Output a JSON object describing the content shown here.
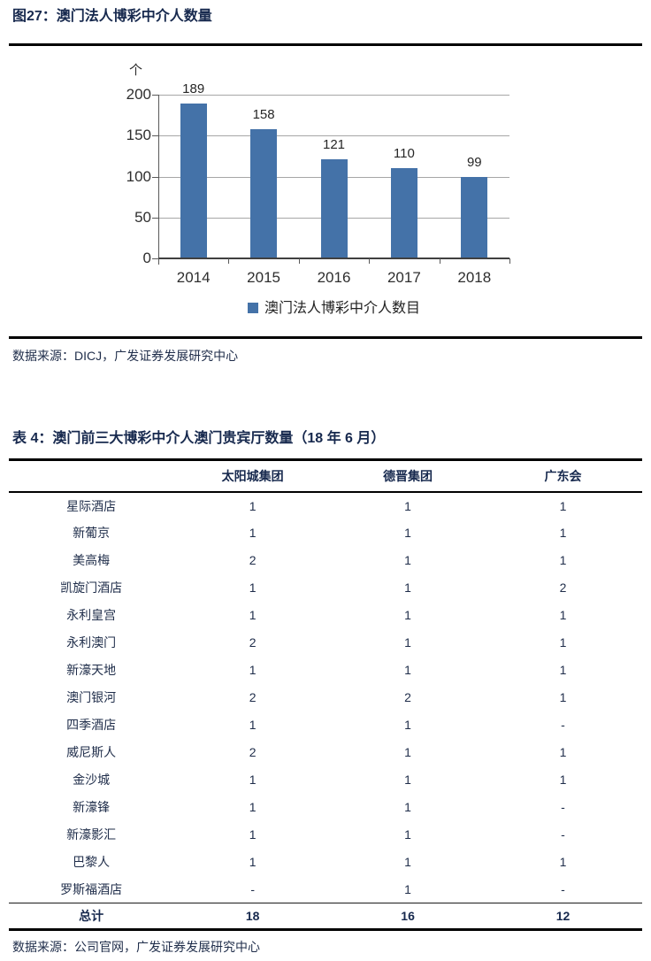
{
  "figure": {
    "title": "图27：澳门法人博彩中介人数量",
    "source": "数据来源：DICJ，广发证券发展研究中心"
  },
  "chart_data": {
    "type": "bar",
    "title": "澳门法人博彩中介人数量",
    "unit_label": "个",
    "categories": [
      "2014",
      "2015",
      "2016",
      "2017",
      "2018"
    ],
    "values": [
      189,
      158,
      121,
      110,
      99
    ],
    "legend": "澳门法人博彩中介人数目",
    "legend_position": "bottom",
    "xlabel": "",
    "ylabel": "个",
    "ylim": [
      0,
      200
    ],
    "yticks": [
      0,
      50,
      100,
      150,
      200
    ],
    "grid": true,
    "bar_color": "#4472a8"
  },
  "table": {
    "title": "表 4：澳门前三大博彩中介人澳门贵宾厅数量（18 年 6 月）",
    "columns": [
      "",
      "太阳城集团",
      "德晋集团",
      "广东会"
    ],
    "rows": [
      [
        "星际酒店",
        "1",
        "1",
        "1"
      ],
      [
        "新葡京",
        "1",
        "1",
        "1"
      ],
      [
        "美高梅",
        "2",
        "1",
        "1"
      ],
      [
        "凯旋门酒店",
        "1",
        "1",
        "2"
      ],
      [
        "永利皇宫",
        "1",
        "1",
        "1"
      ],
      [
        "永利澳门",
        "2",
        "1",
        "1"
      ],
      [
        "新濠天地",
        "1",
        "1",
        "1"
      ],
      [
        "澳门银河",
        "2",
        "2",
        "1"
      ],
      [
        "四季酒店",
        "1",
        "1",
        "-"
      ],
      [
        "威尼斯人",
        "2",
        "1",
        "1"
      ],
      [
        "金沙城",
        "1",
        "1",
        "1"
      ],
      [
        "新濠锋",
        "1",
        "1",
        "-"
      ],
      [
        "新濠影汇",
        "1",
        "1",
        "-"
      ],
      [
        "巴黎人",
        "1",
        "1",
        "1"
      ],
      [
        "罗斯福酒店",
        "-",
        "1",
        "-"
      ]
    ],
    "total_row": [
      "总计",
      "18",
      "16",
      "12"
    ],
    "source": "数据来源：公司官网，广发证券发展研究中心"
  },
  "colors": {
    "heading": "#17294e",
    "table_text": "#1f2d4a",
    "bar": "#4472a8",
    "gridline": "#a6a6a6",
    "axis": "#595959",
    "rule": "#000000"
  }
}
